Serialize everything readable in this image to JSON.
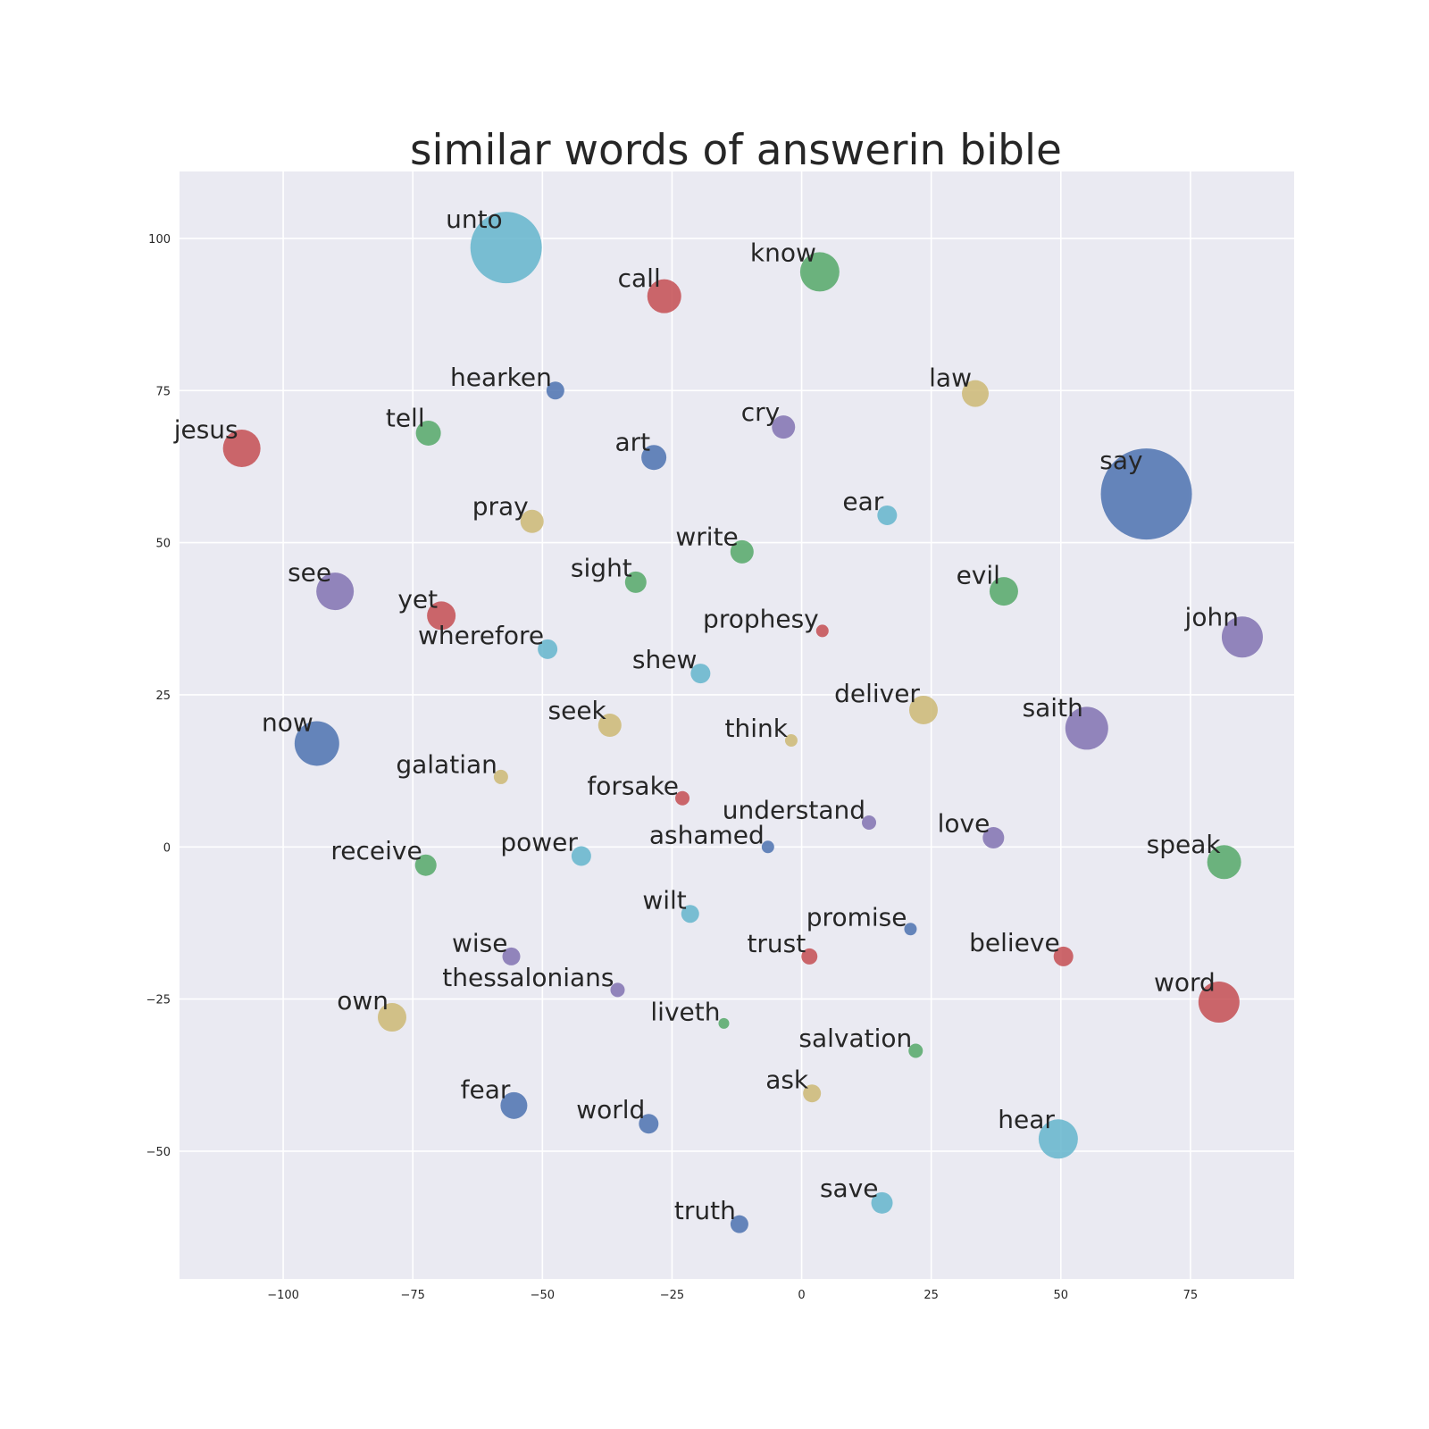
{
  "chart_data": {
    "type": "scatter",
    "title": "similar words of answerin bible",
    "xlabel": "",
    "ylabel": "",
    "xlim": [
      -120,
      95
    ],
    "ylim": [
      -71,
      111
    ],
    "xticks": [
      -100,
      -75,
      -50,
      -25,
      0,
      25,
      50,
      75
    ],
    "yticks": [
      -50,
      -25,
      0,
      25,
      50,
      75,
      100
    ],
    "grid": true,
    "background": "#eaeaf2",
    "palette": {
      "blue": "#4c72b0",
      "green": "#55a868",
      "red": "#c44e52",
      "purple": "#8172b2",
      "yellow": "#ccb974",
      "cyan": "#64b5cd"
    },
    "points": [
      {
        "word": "unto",
        "x": -57,
        "y": 98.5,
        "size": 40,
        "color": "cyan"
      },
      {
        "word": "know",
        "x": 3.5,
        "y": 94.5,
        "size": 22,
        "color": "green"
      },
      {
        "word": "call",
        "x": -26.5,
        "y": 90.5,
        "size": 19,
        "color": "red"
      },
      {
        "word": "hearken",
        "x": -47.5,
        "y": 75,
        "size": 10,
        "color": "blue"
      },
      {
        "word": "law",
        "x": 33.5,
        "y": 74.5,
        "size": 15,
        "color": "yellow"
      },
      {
        "word": "tell",
        "x": -72,
        "y": 68,
        "size": 14,
        "color": "green"
      },
      {
        "word": "cry",
        "x": -3.5,
        "y": 69,
        "size": 13,
        "color": "purple"
      },
      {
        "word": "jesus",
        "x": -108,
        "y": 65.5,
        "size": 21,
        "color": "red"
      },
      {
        "word": "art",
        "x": -28.5,
        "y": 64,
        "size": 14,
        "color": "blue"
      },
      {
        "word": "say",
        "x": 66.5,
        "y": 58,
        "size": 51,
        "color": "blue"
      },
      {
        "word": "pray",
        "x": -52,
        "y": 53.5,
        "size": 13,
        "color": "yellow"
      },
      {
        "word": "ear",
        "x": 16.5,
        "y": 54.5,
        "size": 11,
        "color": "cyan"
      },
      {
        "word": "write",
        "x": -11.5,
        "y": 48.5,
        "size": 13,
        "color": "green"
      },
      {
        "word": "sight",
        "x": -32,
        "y": 43.5,
        "size": 12,
        "color": "green"
      },
      {
        "word": "see",
        "x": -90,
        "y": 42,
        "size": 21,
        "color": "purple"
      },
      {
        "word": "evil",
        "x": 39,
        "y": 42,
        "size": 16,
        "color": "green"
      },
      {
        "word": "yet",
        "x": -69.5,
        "y": 38,
        "size": 16,
        "color": "red"
      },
      {
        "word": "prophesy",
        "x": 4,
        "y": 35.5,
        "size": 7,
        "color": "red"
      },
      {
        "word": "john",
        "x": 85,
        "y": 34.5,
        "size": 23,
        "color": "purple"
      },
      {
        "word": "wherefore",
        "x": -49,
        "y": 32.5,
        "size": 11,
        "color": "cyan"
      },
      {
        "word": "shew",
        "x": -19.5,
        "y": 28.5,
        "size": 11,
        "color": "cyan"
      },
      {
        "word": "deliver",
        "x": 23.5,
        "y": 22.5,
        "size": 16,
        "color": "yellow"
      },
      {
        "word": "saith",
        "x": 55,
        "y": 19.5,
        "size": 24,
        "color": "purple"
      },
      {
        "word": "seek",
        "x": -37,
        "y": 20,
        "size": 13,
        "color": "yellow"
      },
      {
        "word": "think",
        "x": -2,
        "y": 17.5,
        "size": 7,
        "color": "yellow"
      },
      {
        "word": "now",
        "x": -93.5,
        "y": 17,
        "size": 25,
        "color": "blue"
      },
      {
        "word": "galatian",
        "x": -58,
        "y": 11.5,
        "size": 8,
        "color": "yellow"
      },
      {
        "word": "forsake",
        "x": -23,
        "y": 8,
        "size": 8,
        "color": "red"
      },
      {
        "word": "understand",
        "x": 13,
        "y": 4,
        "size": 8,
        "color": "purple"
      },
      {
        "word": "love",
        "x": 37,
        "y": 1.5,
        "size": 12,
        "color": "purple"
      },
      {
        "word": "ashamed",
        "x": -6.5,
        "y": 0,
        "size": 7,
        "color": "blue"
      },
      {
        "word": "power",
        "x": -42.5,
        "y": -1.5,
        "size": 11,
        "color": "cyan"
      },
      {
        "word": "speak",
        "x": 81.5,
        "y": -2.5,
        "size": 19,
        "color": "green"
      },
      {
        "word": "receive",
        "x": -72.5,
        "y": -3,
        "size": 12,
        "color": "green"
      },
      {
        "word": "wilt",
        "x": -21.5,
        "y": -11,
        "size": 10,
        "color": "cyan"
      },
      {
        "word": "promise",
        "x": 21,
        "y": -13.5,
        "size": 7,
        "color": "blue"
      },
      {
        "word": "trust",
        "x": 1.5,
        "y": -18,
        "size": 9,
        "color": "red"
      },
      {
        "word": "believe",
        "x": 50.5,
        "y": -18,
        "size": 11,
        "color": "red"
      },
      {
        "word": "wise",
        "x": -56,
        "y": -18,
        "size": 10,
        "color": "purple"
      },
      {
        "word": "thessalonians",
        "x": -35.5,
        "y": -23.5,
        "size": 8,
        "color": "purple"
      },
      {
        "word": "word",
        "x": 80.5,
        "y": -25.5,
        "size": 23,
        "color": "red"
      },
      {
        "word": "own",
        "x": -79,
        "y": -28,
        "size": 16,
        "color": "yellow"
      },
      {
        "word": "liveth",
        "x": -15,
        "y": -29,
        "size": 6,
        "color": "green"
      },
      {
        "word": "salvation",
        "x": 22,
        "y": -33.5,
        "size": 8,
        "color": "green"
      },
      {
        "word": "ask",
        "x": 2,
        "y": -40.5,
        "size": 10,
        "color": "yellow"
      },
      {
        "word": "fear",
        "x": -55.5,
        "y": -42.5,
        "size": 15,
        "color": "blue"
      },
      {
        "word": "world",
        "x": -29.5,
        "y": -45.5,
        "size": 11,
        "color": "blue"
      },
      {
        "word": "hear",
        "x": 49.5,
        "y": -48,
        "size": 22,
        "color": "cyan"
      },
      {
        "word": "save",
        "x": 15.5,
        "y": -58.5,
        "size": 12,
        "color": "cyan"
      },
      {
        "word": "truth",
        "x": -12,
        "y": -62,
        "size": 10,
        "color": "blue"
      }
    ]
  }
}
